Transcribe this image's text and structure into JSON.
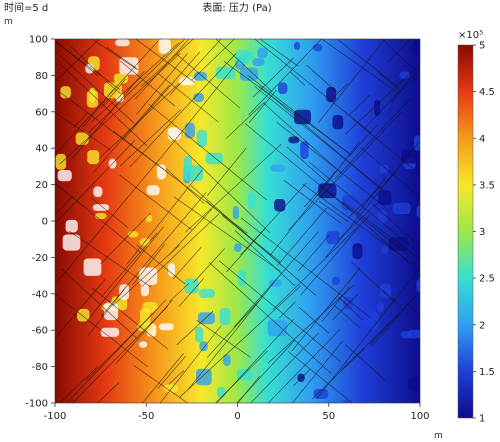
{
  "header": {
    "time_label": "时间=5 d",
    "plot_title": "表面: 压力 (Pa)"
  },
  "chart_data": {
    "type": "heatmap",
    "title": "表面: 压力 (Pa)",
    "x_unit": "m",
    "y_unit": "m",
    "xlim": [
      -100,
      100
    ],
    "ylim": [
      -100,
      100
    ],
    "x_ticks": [
      "-100",
      "-50",
      "0",
      "50",
      "100"
    ],
    "y_ticks": [
      "100",
      "80",
      "60",
      "40",
      "20",
      "0",
      "-20",
      "-40",
      "-60",
      "-80",
      "-100"
    ],
    "colorbar": {
      "multiplier": "×10⁵",
      "range": [
        1,
        5
      ],
      "ticks": [
        "5",
        "4.5",
        "4",
        "3.5",
        "3",
        "2.5",
        "2",
        "1.5",
        "1"
      ]
    },
    "field": {
      "description_values": "pressure decreases from left to right",
      "high_value": 5,
      "low_value": 1
    }
  },
  "colors": {
    "c0": "#0d0d8a",
    "c1": "#1f3fd9",
    "c2": "#2fa0f0",
    "c3": "#37e0d2",
    "c4": "#9be84a",
    "c5": "#f6e82a",
    "c6": "#f79a1c",
    "c7": "#e43a12",
    "c8": "#8a0a02"
  }
}
